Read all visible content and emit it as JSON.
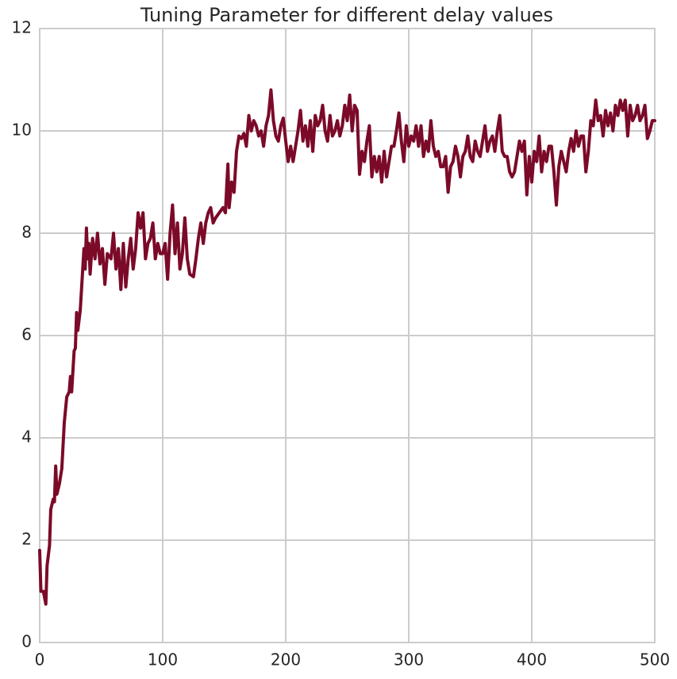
{
  "chart_data": {
    "type": "line",
    "title": "Tuning Parameter for different delay values",
    "x": [
      0,
      1,
      3,
      5,
      6,
      8,
      9,
      11,
      12,
      13,
      14,
      16,
      18,
      20,
      22,
      24,
      25,
      26,
      28,
      29,
      30,
      31,
      33,
      35,
      36,
      37,
      38,
      39,
      40,
      41,
      43,
      45,
      47,
      49,
      51,
      53,
      55,
      58,
      60,
      62,
      64,
      66,
      68,
      70,
      72,
      74,
      76,
      78,
      80,
      82,
      84,
      86,
      88,
      90,
      92,
      94,
      96,
      98,
      100,
      102,
      104,
      106,
      108,
      110,
      112,
      114,
      116,
      118,
      120,
      122,
      125,
      127,
      129,
      131,
      133,
      135,
      137,
      139,
      141,
      143,
      146,
      149,
      151,
      152,
      153,
      154,
      156,
      158,
      160,
      162,
      164,
      166,
      168,
      170,
      172,
      174,
      176,
      178,
      180,
      182,
      184,
      186,
      188,
      190,
      192,
      194,
      196,
      198,
      200,
      202,
      204,
      206,
      208,
      210,
      212,
      214,
      216,
      218,
      220,
      222,
      224,
      226,
      228,
      230,
      232,
      234,
      236,
      238,
      240,
      242,
      244,
      246,
      248,
      250,
      252,
      254,
      256,
      258,
      260,
      262,
      264,
      266,
      268,
      270,
      272,
      274,
      276,
      278,
      280,
      282,
      284,
      286,
      288,
      290,
      292,
      294,
      296,
      298,
      300,
      302,
      304,
      306,
      308,
      310,
      312,
      314,
      316,
      318,
      320,
      322,
      324,
      326,
      328,
      330,
      332,
      334,
      336,
      338,
      340,
      342,
      344,
      346,
      348,
      350,
      352,
      354,
      356,
      358,
      360,
      362,
      364,
      366,
      368,
      370,
      372,
      374,
      376,
      378,
      380,
      382,
      384,
      386,
      388,
      390,
      392,
      394,
      396,
      398,
      400,
      402,
      404,
      406,
      408,
      410,
      412,
      414,
      416,
      418,
      420,
      422,
      424,
      426,
      428,
      430,
      432,
      434,
      436,
      438,
      440,
      442,
      444,
      446,
      448,
      450,
      452,
      454,
      456,
      458,
      460,
      462,
      464,
      466,
      468,
      470,
      472,
      474,
      476,
      478,
      480,
      482,
      484,
      486,
      488,
      490,
      492,
      494,
      496,
      498,
      500
    ],
    "values": [
      1.8,
      1.0,
      1.0,
      0.75,
      1.5,
      1.9,
      2.6,
      2.8,
      2.75,
      3.45,
      2.9,
      3.1,
      3.4,
      4.3,
      4.8,
      4.9,
      5.2,
      4.9,
      5.7,
      5.75,
      6.45,
      6.1,
      6.5,
      7.3,
      7.7,
      7.3,
      8.1,
      7.5,
      7.8,
      7.2,
      7.9,
      7.5,
      8.0,
      7.4,
      7.7,
      7.0,
      7.6,
      7.5,
      8.0,
      7.3,
      7.7,
      6.9,
      7.8,
      6.95,
      7.5,
      7.9,
      7.3,
      7.7,
      8.4,
      8.1,
      8.4,
      7.5,
      7.8,
      7.9,
      8.2,
      7.5,
      7.8,
      7.6,
      7.6,
      7.8,
      7.1,
      8.0,
      8.55,
      7.6,
      8.2,
      7.3,
      7.6,
      8.3,
      7.5,
      7.2,
      7.15,
      7.5,
      7.9,
      8.2,
      7.8,
      8.2,
      8.4,
      8.5,
      8.2,
      8.3,
      8.4,
      8.5,
      8.4,
      8.9,
      9.35,
      8.5,
      9.0,
      8.8,
      9.6,
      9.9,
      9.85,
      9.95,
      9.7,
      10.3,
      10.0,
      10.2,
      10.1,
      9.9,
      10.0,
      9.7,
      10.1,
      10.3,
      10.8,
      10.2,
      9.9,
      9.8,
      10.1,
      10.25,
      9.8,
      9.4,
      9.7,
      9.4,
      9.7,
      10.0,
      10.4,
      9.8,
      10.1,
      9.7,
      10.2,
      9.6,
      10.3,
      10.1,
      10.2,
      10.5,
      10.0,
      9.8,
      10.3,
      9.9,
      10.0,
      10.2,
      9.9,
      10.1,
      10.5,
      10.2,
      10.7,
      10.0,
      10.5,
      10.4,
      9.15,
      9.6,
      9.4,
      9.8,
      10.1,
      9.1,
      9.5,
      9.2,
      9.5,
      9.0,
      9.6,
      9.1,
      9.4,
      9.7,
      9.7,
      10.0,
      10.35,
      9.8,
      9.4,
      10.1,
      9.7,
      9.9,
      9.8,
      10.1,
      9.7,
      10.1,
      9.5,
      9.8,
      9.6,
      10.2,
      9.7,
      9.5,
      9.6,
      9.3,
      9.3,
      9.5,
      8.8,
      9.3,
      9.4,
      9.7,
      9.5,
      9.1,
      9.5,
      9.6,
      9.9,
      9.5,
      9.4,
      9.8,
      9.6,
      9.5,
      9.8,
      10.1,
      9.6,
      9.8,
      9.9,
      9.6,
      10.0,
      10.3,
      9.6,
      9.5,
      9.5,
      9.2,
      9.1,
      9.2,
      9.5,
      9.8,
      9.6,
      9.8,
      8.75,
      9.5,
      9.0,
      9.6,
      9.4,
      9.9,
      9.2,
      9.6,
      9.4,
      9.7,
      9.7,
      9.2,
      8.55,
      9.3,
      9.6,
      9.4,
      9.2,
      9.6,
      9.85,
      9.6,
      10.0,
      9.7,
      9.9,
      9.9,
      9.2,
      9.6,
      10.2,
      10.1,
      10.6,
      10.2,
      10.3,
      9.9,
      10.4,
      10.1,
      10.35,
      10.0,
      10.5,
      10.3,
      10.6,
      10.4,
      10.6,
      9.9,
      10.5,
      10.2,
      10.3,
      10.5,
      10.2,
      10.3,
      10.5,
      9.85,
      10.0,
      10.2,
      10.2
    ],
    "color": "#7b0a28",
    "xlim": [
      0,
      500
    ],
    "xticks": [
      0,
      100,
      200,
      300,
      400,
      500
    ],
    "ylim": [
      0,
      12
    ],
    "yticks": [
      0,
      2,
      4,
      6,
      8,
      10,
      12
    ],
    "grid": true
  }
}
